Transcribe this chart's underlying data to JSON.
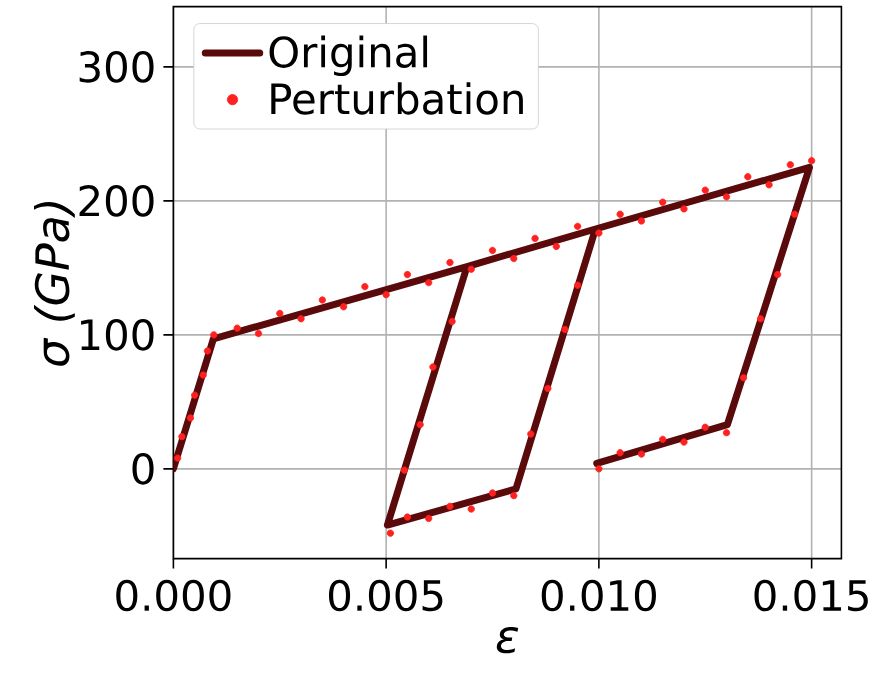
{
  "chart_data": {
    "type": "line",
    "xlabel": "ε",
    "ylabel": "σ (GPa)",
    "xlim": [
      0,
      0.0157
    ],
    "ylim": [
      -67,
      345
    ],
    "xticks": [
      {
        "value": 0,
        "label": "0.000"
      },
      {
        "value": 0.005,
        "label": "0.005"
      },
      {
        "value": 0.01,
        "label": "0.010"
      },
      {
        "value": 0.015,
        "label": "0.015"
      }
    ],
    "yticks": [
      0,
      100,
      200,
      300
    ],
    "grid": true,
    "legend": "top left",
    "series": [
      {
        "name": "Perturbation",
        "type": "scatter",
        "marker": "circle",
        "color": "#ff2020",
        "x": [
          0.0001,
          0.0002,
          0.0004,
          0.0005,
          0.0007,
          0.0008,
          0.00095,
          0.0015,
          0.002,
          0.0025,
          0.003,
          0.0035,
          0.004,
          0.0045,
          0.005,
          0.0055,
          0.006,
          0.0065,
          0.007,
          0.0075,
          0.008,
          0.0085,
          0.009,
          0.0095,
          0.01,
          0.0105,
          0.011,
          0.0115,
          0.012,
          0.0125,
          0.013,
          0.0135,
          0.014,
          0.0145,
          0.015,
          0.00655,
          0.0061,
          0.0058,
          0.00543,
          0.0051,
          0.0055,
          0.006,
          0.0065,
          0.007,
          0.0075,
          0.008,
          0.0084,
          0.0088,
          0.0092,
          0.0095,
          0.0146,
          0.0142,
          0.0138,
          0.0134,
          0.01,
          0.0105,
          0.011,
          0.0115,
          0.012,
          0.0125,
          0.013
        ],
        "values": [
          8,
          24,
          38,
          55,
          70,
          88,
          100,
          105,
          101,
          116,
          112,
          126,
          121,
          136,
          130,
          145,
          139,
          154,
          149,
          163,
          157,
          172,
          166,
          181,
          176,
          190,
          185,
          199,
          194,
          208,
          203,
          218,
          212,
          227,
          230,
          110,
          76,
          33,
          -1,
          -48,
          -36,
          -37,
          -28,
          -30,
          -18,
          -20,
          26,
          60,
          104,
          137,
          190,
          145,
          112,
          68,
          0,
          12,
          11,
          22,
          20,
          31,
          27
        ]
      },
      {
        "name": "Original",
        "type": "line",
        "marker": "none",
        "line_style": "solid",
        "color": "#5a0a0a",
        "x": [
          0,
          0.00094,
          0.0069,
          0.00992,
          0.0069,
          0.00503,
          0.00805,
          0.00992,
          0.01495,
          0.01302,
          0.00995
        ],
        "values": [
          0,
          97,
          151,
          179,
          151,
          -42,
          -15,
          179,
          225,
          33,
          4
        ]
      }
    ]
  }
}
